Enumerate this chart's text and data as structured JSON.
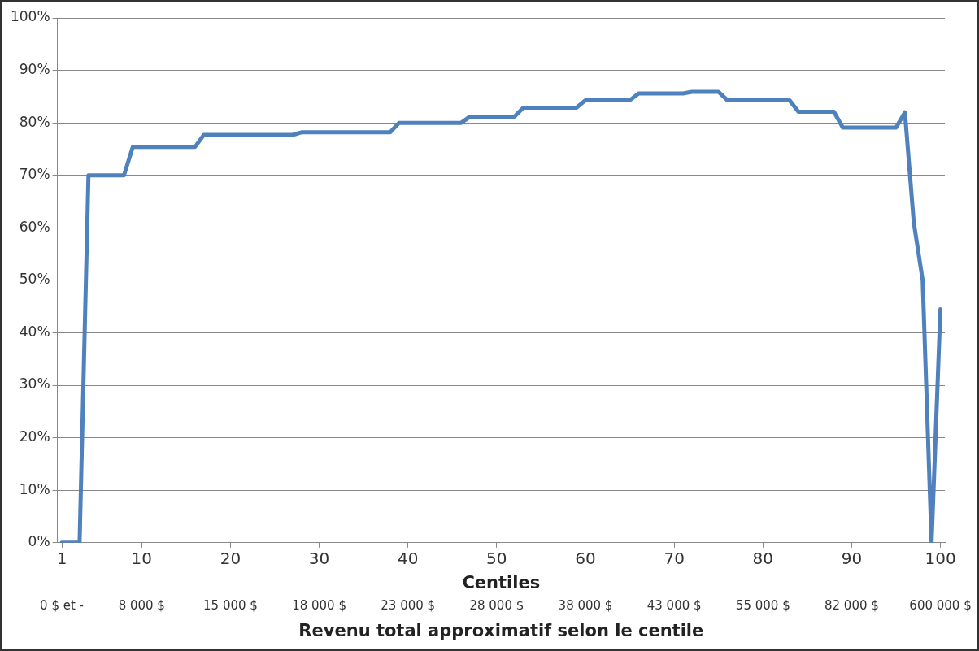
{
  "chart_data": {
    "type": "line",
    "xlabel": "Centiles",
    "x": [
      1,
      2,
      3,
      4,
      5,
      6,
      7,
      8,
      9,
      10,
      11,
      12,
      13,
      14,
      15,
      16,
      17,
      18,
      19,
      20,
      21,
      22,
      23,
      24,
      25,
      26,
      27,
      28,
      29,
      30,
      31,
      32,
      33,
      34,
      35,
      36,
      37,
      38,
      39,
      40,
      41,
      42,
      43,
      44,
      45,
      46,
      47,
      48,
      49,
      50,
      51,
      52,
      53,
      54,
      55,
      56,
      57,
      58,
      59,
      60,
      61,
      62,
      63,
      64,
      65,
      66,
      67,
      68,
      69,
      70,
      71,
      72,
      73,
      74,
      75,
      76,
      77,
      78,
      79,
      80,
      81,
      82,
      83,
      84,
      85,
      86,
      87,
      88,
      89,
      90,
      91,
      92,
      93,
      94,
      95,
      96,
      97,
      98,
      99,
      100
    ],
    "annotations": [
      "0 $ et -",
      "8 000 $",
      "15 000 $",
      "18 000 $",
      "23 000 $",
      "28 000 $",
      "38 000 $",
      "43 000 $",
      "55 000 $",
      "82 000 $",
      "600 000 $",
      "Revenu total approximatif selon le centile"
    ],
    "series": [
      {
        "color": "#4f81bd",
        "values": [
          0,
          0,
          0,
          70,
          70,
          70,
          70,
          70,
          75.4,
          75.4,
          75.4,
          75.4,
          75.4,
          75.4,
          75.4,
          75.4,
          77.7,
          77.7,
          77.7,
          77.7,
          77.7,
          77.7,
          77.7,
          77.7,
          77.7,
          77.7,
          77.7,
          78.2,
          78.2,
          78.2,
          78.2,
          78.2,
          78.2,
          78.2,
          78.2,
          78.2,
          78.2,
          78.2,
          80,
          80,
          80,
          80,
          80,
          80,
          80,
          80,
          81.2,
          81.2,
          81.2,
          81.2,
          81.2,
          81.2,
          82.9,
          82.9,
          82.9,
          82.9,
          82.9,
          82.9,
          82.9,
          84.3,
          84.3,
          84.3,
          84.3,
          84.3,
          84.3,
          85.6,
          85.6,
          85.6,
          85.6,
          85.6,
          85.6,
          85.9,
          85.9,
          85.9,
          85.9,
          84.3,
          84.3,
          84.3,
          84.3,
          84.3,
          84.3,
          84.3,
          84.3,
          82.1,
          82.1,
          82.1,
          82.1,
          82.1,
          79.1,
          79.1,
          79.1,
          79.1,
          79.1,
          79.1,
          79.1,
          82,
          61,
          50,
          0,
          44.5
        ]
      }
    ],
    "xlim": [
      0.5,
      100.5
    ],
    "xticks": [
      1,
      10,
      20,
      30,
      40,
      50,
      60,
      70,
      80,
      90,
      100
    ],
    "ylim": [
      0,
      100
    ],
    "yticks": [
      {
        "value": 0,
        "label": "0%"
      },
      {
        "value": 10,
        "label": "10%"
      },
      {
        "value": 20,
        "label": "20%"
      },
      {
        "value": 30,
        "label": "30%"
      },
      {
        "value": 40,
        "label": "40%"
      },
      {
        "value": 50,
        "label": "50%"
      },
      {
        "value": 60,
        "label": "60%"
      },
      {
        "value": 70,
        "label": "70%"
      },
      {
        "value": 80,
        "label": "80%"
      },
      {
        "value": 90,
        "label": "90%"
      },
      {
        "value": 100,
        "label": "100%"
      }
    ],
    "grid": "y",
    "legend": false,
    "marker": "none",
    "line_style": "solid"
  }
}
